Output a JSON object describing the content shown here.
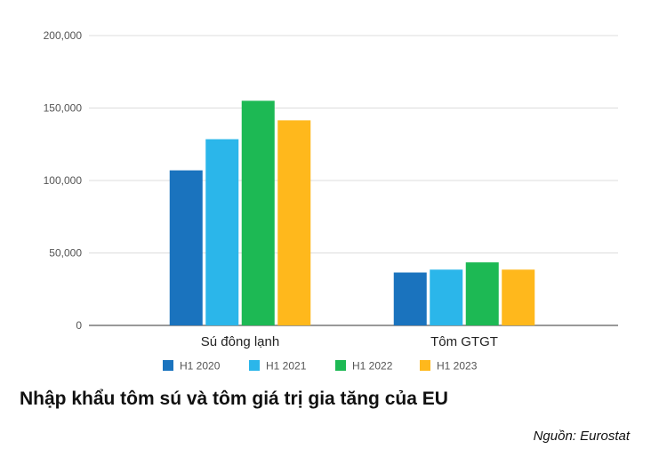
{
  "chart_data": {
    "type": "bar",
    "title": "Nhập khẩu tôm sú và tôm giá trị gia tăng của EU",
    "source": "Nguồn: Eurostat",
    "categories": [
      "Sú đông lạnh",
      "Tôm GTGT"
    ],
    "series": [
      {
        "name": "H1 2020",
        "color": "#1A73BE",
        "values": [
          107000,
          36500
        ]
      },
      {
        "name": "H1 2021",
        "color": "#2BB6EA",
        "values": [
          128500,
          38500
        ]
      },
      {
        "name": "H1 2022",
        "color": "#1DB954",
        "values": [
          155000,
          43500
        ]
      },
      {
        "name": "H1 2023",
        "color": "#FFB81C",
        "values": [
          141500,
          38500
        ]
      }
    ],
    "ylim": [
      0,
      200000
    ],
    "yticks": [
      0,
      50000,
      100000,
      150000,
      200000
    ],
    "ytick_labels": [
      "0",
      "50,000",
      "100,000",
      "150,000",
      "200,000"
    ],
    "grid": true,
    "legend_position": "bottom"
  }
}
